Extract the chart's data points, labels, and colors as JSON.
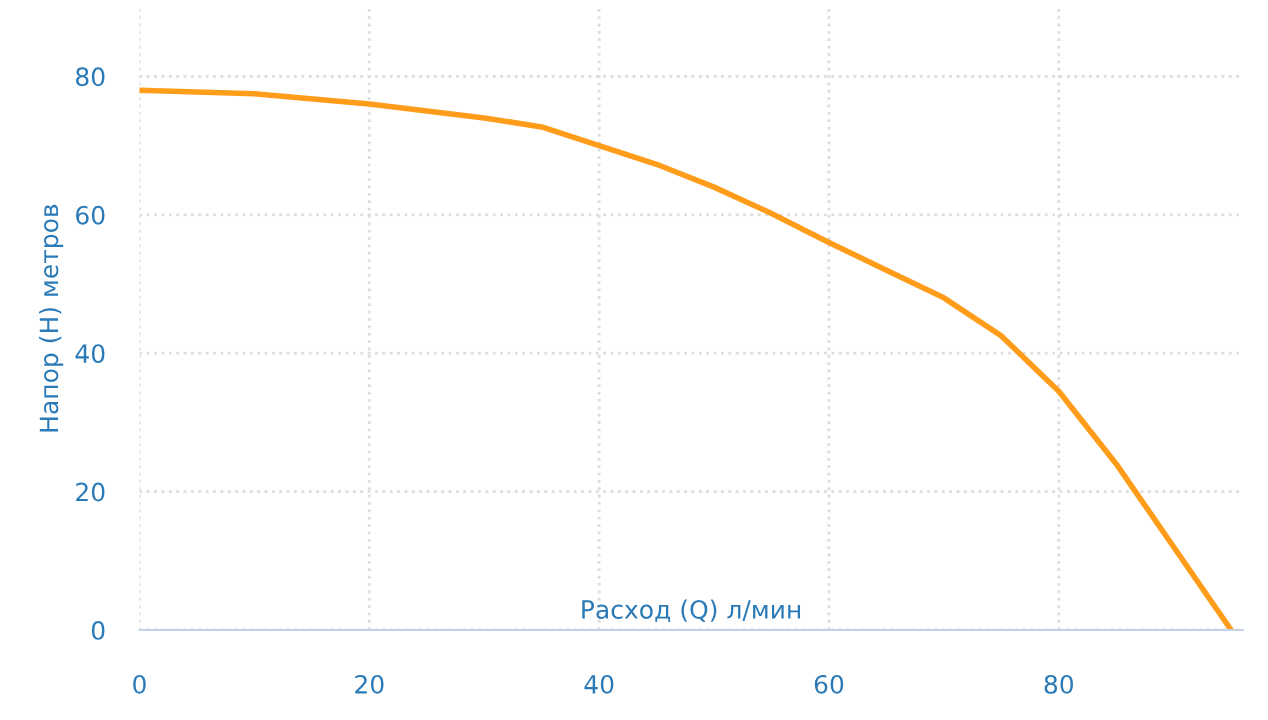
{
  "chart_data": {
    "type": "line",
    "xlabel": "Расход (Q) л/мин",
    "ylabel": "Напор (H) метров",
    "x": [
      0,
      10,
      20,
      30,
      35,
      40,
      45,
      50,
      55,
      60,
      65,
      70,
      75,
      80,
      85,
      90,
      95
    ],
    "series": [
      {
        "color": "#ff9c1a",
        "values": [
          78,
          77.5,
          76,
          74,
          72.7,
          70,
          67.3,
          64,
          60.2,
          56,
          52,
          48,
          42.5,
          34.5,
          24,
          12,
          0
        ]
      }
    ],
    "xlim": [
      0,
      96
    ],
    "xticks": [
      0,
      20,
      40,
      60,
      80
    ],
    "ylim": [
      0,
      90
    ],
    "yticks": [
      0,
      20,
      40,
      60,
      80
    ],
    "grid": true,
    "marker": "none",
    "line_style": "solid"
  }
}
